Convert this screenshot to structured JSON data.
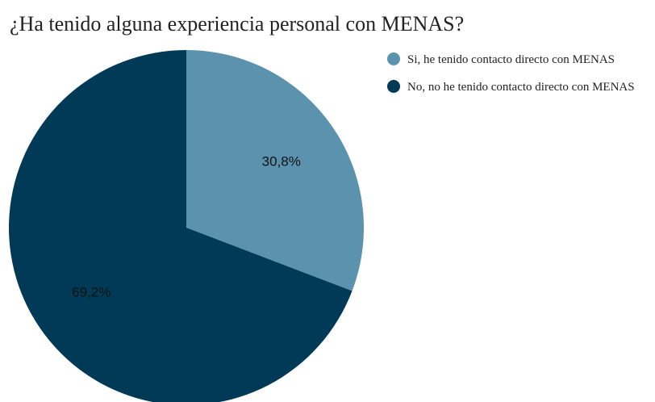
{
  "chart_data": {
    "type": "pie",
    "title": "¿Ha tenido alguna experiencia personal con MENAS?",
    "categories": [
      "Si, he tenido contacto directo con MENAS",
      "No, no he tenido contacto directo con MENAS"
    ],
    "values": [
      30.8,
      69.2
    ],
    "value_labels": [
      "30,8%",
      "69,2%"
    ],
    "colors": [
      "#5b93ae",
      "#003a57"
    ],
    "legend": "right"
  }
}
